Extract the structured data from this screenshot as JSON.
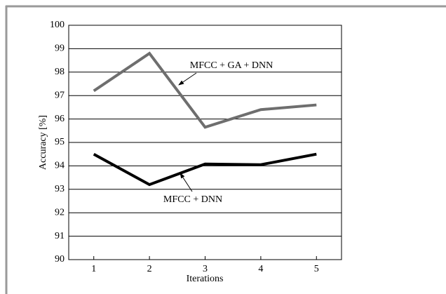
{
  "chart_data": {
    "type": "line",
    "x_label": "Iterations",
    "y_label": "Accuracy [%]",
    "x": [
      1,
      2,
      3,
      4,
      5
    ],
    "series": [
      {
        "name": "MFCC + GA + DNN",
        "color": "#6e6e6e",
        "values": [
          97.2,
          98.8,
          95.65,
          96.4,
          96.6
        ]
      },
      {
        "name": "MFCC + DNN",
        "color": "#000000",
        "values": [
          94.5,
          93.2,
          94.08,
          94.05,
          94.5
        ]
      }
    ],
    "xlim": [
      0.55,
      5.45
    ],
    "xticks": [
      1,
      2,
      3,
      4,
      5
    ],
    "ylim": [
      90,
      100
    ],
    "yticks": [
      90,
      91,
      92,
      93,
      94,
      95,
      96,
      97,
      98,
      99,
      100
    ],
    "grid": true
  }
}
